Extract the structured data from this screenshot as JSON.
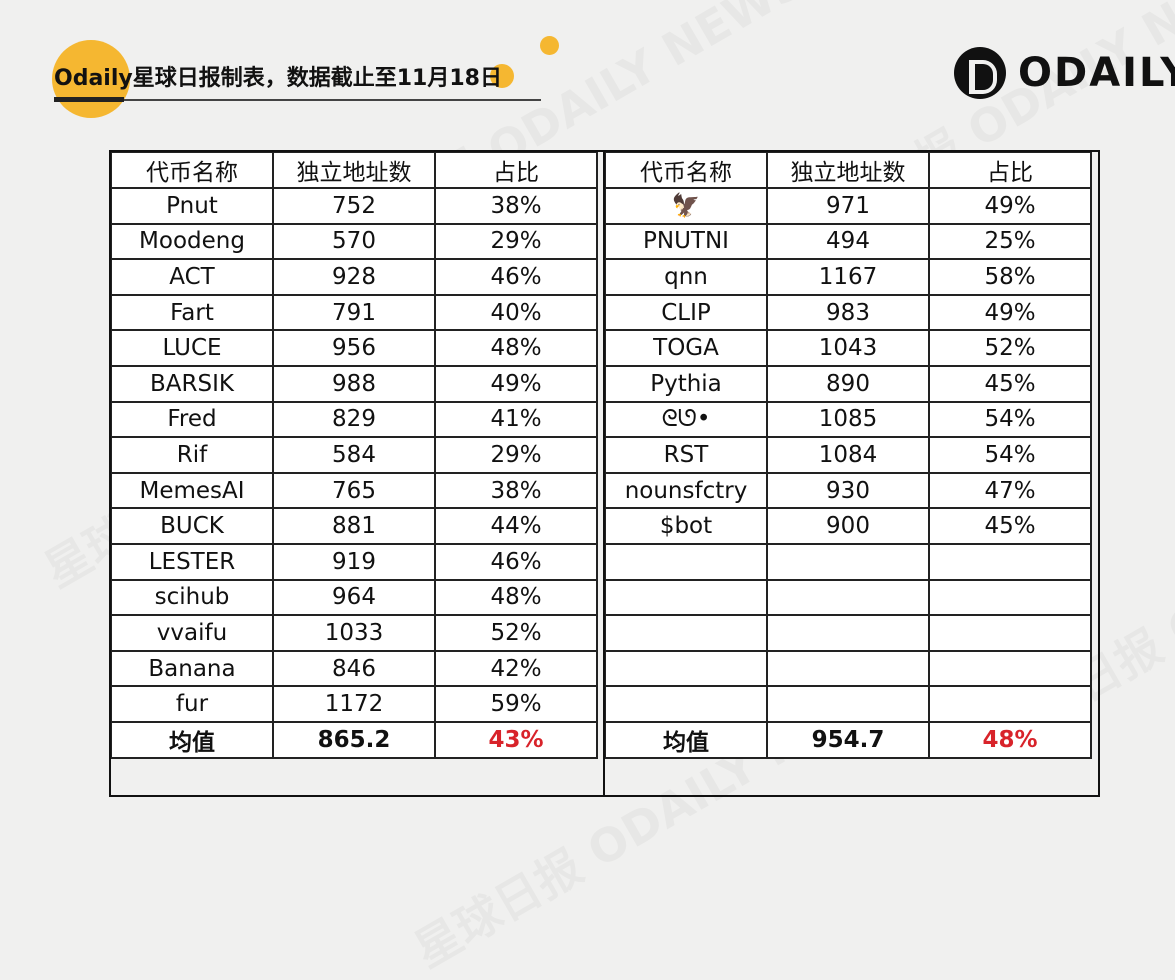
{
  "header": {
    "title": "Odaily星球日报制表，数据截止至11月18日",
    "logo_text": "ODAILY",
    "watermark": "星球日报 ODAILY NEWS"
  },
  "colors": {
    "accent": "#f5b731",
    "highlight_red": "#d8232a",
    "background": "#f0f0ef"
  },
  "table_left": {
    "headers": [
      "代币名称",
      "独立地址数",
      "占比"
    ],
    "rows": [
      [
        "Pnut",
        "752",
        "38%"
      ],
      [
        "Moodeng",
        "570",
        "29%"
      ],
      [
        "ACT",
        "928",
        "46%"
      ],
      [
        "Fart",
        "791",
        "40%"
      ],
      [
        "LUCE",
        "956",
        "48%"
      ],
      [
        "BARSIK",
        "988",
        "49%"
      ],
      [
        "Fred",
        "829",
        "41%"
      ],
      [
        "Rif",
        "584",
        "29%"
      ],
      [
        "MemesAI",
        "765",
        "38%"
      ],
      [
        "BUCK",
        "881",
        "44%"
      ],
      [
        "LESTER",
        "919",
        "46%"
      ],
      [
        "scihub",
        "964",
        "48%"
      ],
      [
        "vvaifu",
        "1033",
        "52%"
      ],
      [
        "Banana",
        "846",
        "42%"
      ],
      [
        "fur",
        "1172",
        "59%"
      ]
    ],
    "average": [
      "均值",
      "865.2",
      "43%"
    ]
  },
  "table_right": {
    "headers": [
      "代币名称",
      "独立地址数",
      "占比"
    ],
    "rows": [
      [
        "🦅",
        "971",
        "49%"
      ],
      [
        "PNUTNI",
        "494",
        "25%"
      ],
      [
        "qnn",
        "1167",
        "58%"
      ],
      [
        "CLIP",
        "983",
        "49%"
      ],
      [
        "TOGA",
        "1043",
        "52%"
      ],
      [
        "Pythia",
        "890",
        "45%"
      ],
      [
        "ᘓᘎ•",
        "1085",
        "54%"
      ],
      [
        "RST",
        "1084",
        "54%"
      ],
      [
        "nounsfctry",
        "930",
        "47%"
      ],
      [
        "$bot",
        "900",
        "45%"
      ],
      [
        "",
        "",
        ""
      ],
      [
        "",
        "",
        ""
      ],
      [
        "",
        "",
        ""
      ],
      [
        "",
        "",
        ""
      ],
      [
        "",
        "",
        ""
      ]
    ],
    "average": [
      "均值",
      "954.7",
      "48%"
    ]
  }
}
